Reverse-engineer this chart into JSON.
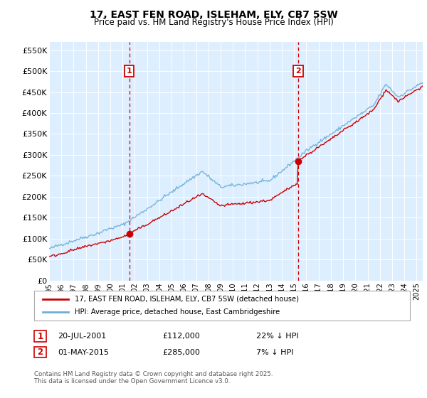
{
  "title": "17, EAST FEN ROAD, ISLEHAM, ELY, CB7 5SW",
  "subtitle": "Price paid vs. HM Land Registry's House Price Index (HPI)",
  "ylim": [
    0,
    570000
  ],
  "yticks": [
    0,
    50000,
    100000,
    150000,
    200000,
    250000,
    300000,
    350000,
    400000,
    450000,
    500000,
    550000
  ],
  "ytick_labels": [
    "£0",
    "£50K",
    "£100K",
    "£150K",
    "£200K",
    "£250K",
    "£300K",
    "£350K",
    "£400K",
    "£450K",
    "£500K",
    "£550K"
  ],
  "hpi_color": "#6baed6",
  "price_color": "#cc0000",
  "vline_color": "#cc0000",
  "plot_bg": "#ddeeff",
  "fig_bg": "#ffffff",
  "transaction1": {
    "date": "20-JUL-2001",
    "price": 112000,
    "label": "1",
    "hpi_diff": "22% ↓ HPI",
    "x_year": 2001.55
  },
  "transaction2": {
    "date": "01-MAY-2015",
    "price": 285000,
    "label": "2",
    "hpi_diff": "7% ↓ HPI",
    "x_year": 2015.33
  },
  "legend_line1": "17, EAST FEN ROAD, ISLEHAM, ELY, CB7 5SW (detached house)",
  "legend_line2": "HPI: Average price, detached house, East Cambridgeshire",
  "footnote": "Contains HM Land Registry data © Crown copyright and database right 2025.\nThis data is licensed under the Open Government Licence v3.0.",
  "xmin": 1995,
  "xmax": 2025.5
}
